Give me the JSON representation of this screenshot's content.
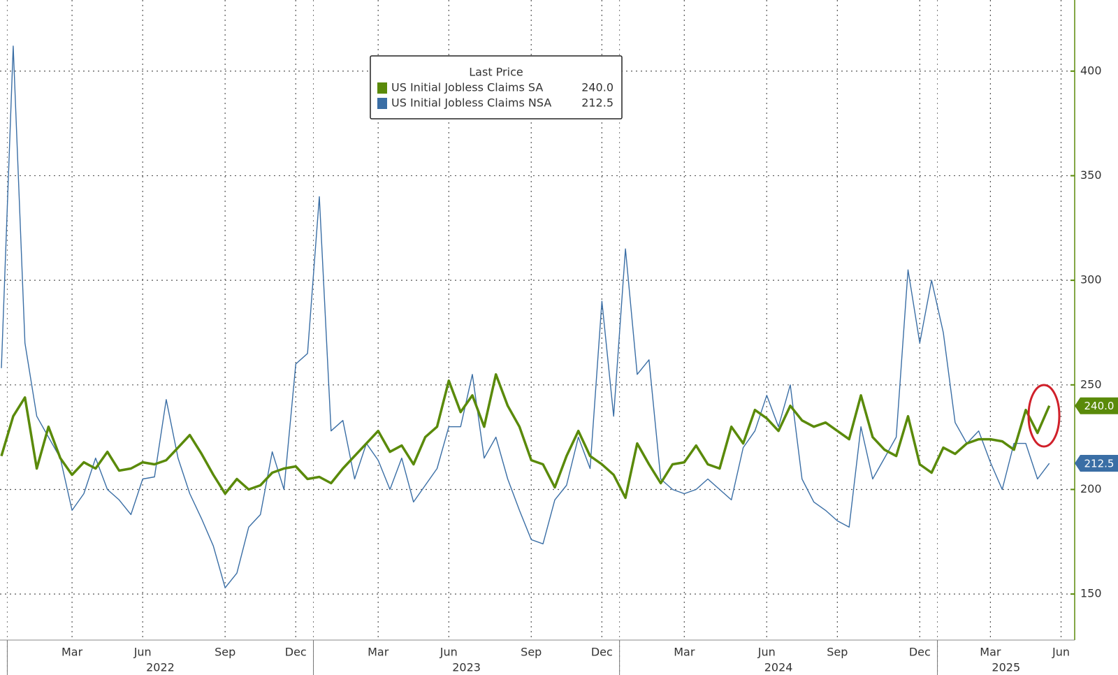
{
  "chart_data": {
    "type": "line",
    "legend_title": "Last Price",
    "categories": [
      null,
      null,
      null,
      null,
      null,
      null,
      "Mar",
      null,
      null,
      null,
      null,
      null,
      "Jun",
      null,
      null,
      null,
      null,
      null,
      null,
      "Sep",
      null,
      null,
      null,
      null,
      null,
      "Dec",
      null,
      null,
      null,
      null,
      null,
      null,
      "Mar",
      null,
      null,
      null,
      null,
      null,
      "Jun",
      null,
      null,
      null,
      null,
      null,
      null,
      "Sep",
      null,
      null,
      null,
      null,
      null,
      "Dec",
      null,
      null,
      null,
      null,
      null,
      null,
      "Mar",
      null,
      null,
      null,
      null,
      null,
      null,
      "Jun",
      null,
      null,
      null,
      null,
      null,
      "Sep",
      null,
      null,
      null,
      null,
      null,
      null,
      "Dec",
      null,
      null,
      null,
      null,
      null,
      "Mar",
      null,
      null,
      null,
      null,
      null,
      "Jun"
    ],
    "x_years": [
      null,
      "2022",
      "2022",
      "2022",
      "2022",
      "2022",
      "2022",
      "2022",
      "2022",
      "2022",
      "2022",
      "2022",
      "2022",
      "2022",
      "2022",
      "2022",
      "2022",
      "2022",
      "2022",
      "2022",
      "2022",
      "2022",
      "2022",
      "2022",
      "2022",
      "2022",
      "2022",
      "2023",
      "2023",
      "2023",
      "2023",
      "2023",
      "2023",
      "2023",
      "2023",
      "2023",
      "2023",
      "2023",
      "2023",
      "2023",
      "2023",
      "2023",
      "2023",
      "2023",
      "2023",
      "2023",
      "2023",
      "2023",
      "2023",
      "2023",
      "2023",
      "2023",
      "2023",
      "2024",
      "2024",
      "2024",
      "2024",
      "2024",
      "2024",
      "2024",
      "2024",
      "2024",
      "2024",
      "2024",
      "2024",
      "2024",
      "2024",
      "2024",
      "2024",
      "2024",
      "2024",
      "2024",
      "2024",
      "2024",
      "2024",
      "2024",
      "2024",
      "2024",
      "2024",
      "2024",
      "2025",
      "2025",
      "2025",
      "2025",
      "2025",
      "2025",
      "2025",
      "2025",
      "2025",
      "2025",
      "2025",
      "2025",
      "2025"
    ],
    "series": [
      {
        "name": "US Initial Jobless Claims SA",
        "color": "#5a8a0a",
        "last_value_label": "240.0",
        "values": [
          216,
          235,
          244,
          210,
          230,
          215,
          207,
          213,
          210,
          218,
          209,
          210,
          213,
          212,
          214,
          220,
          226,
          217,
          207,
          198,
          205,
          200,
          202,
          208,
          210,
          211,
          205,
          206,
          203,
          210,
          216,
          222,
          228,
          218,
          221,
          212,
          225,
          230,
          252,
          237,
          245,
          230,
          255,
          240,
          230,
          214,
          212,
          201,
          216,
          228,
          216,
          212,
          207,
          196,
          222,
          212,
          203,
          212,
          213,
          221,
          212,
          210,
          230,
          222,
          238,
          234,
          228,
          240,
          233,
          230,
          232,
          228,
          224,
          245,
          225,
          219,
          216,
          235,
          212,
          208,
          220,
          217,
          222,
          224,
          224,
          223,
          219,
          238,
          227,
          240,
          null
        ]
      },
      {
        "name": "US Initial Jobless Claims NSA",
        "color": "#3a6ea5",
        "last_value_label": "212.5",
        "values": [
          258,
          412,
          270,
          235,
          225,
          215,
          190,
          198,
          215,
          200,
          195,
          188,
          205,
          206,
          243,
          215,
          198,
          186,
          173,
          153,
          160,
          182,
          188,
          218,
          200,
          260,
          265,
          340,
          228,
          233,
          205,
          222,
          214,
          200,
          215,
          194,
          202,
          210,
          230,
          230,
          255,
          215,
          225,
          205,
          190,
          176,
          174,
          195,
          202,
          225,
          210,
          290,
          235,
          315,
          255,
          262,
          205,
          200,
          198,
          200,
          205,
          200,
          195,
          220,
          228,
          245,
          230,
          250,
          205,
          194,
          190,
          185,
          182,
          230,
          205,
          215,
          225,
          305,
          270,
          300,
          275,
          232,
          222,
          228,
          213,
          200,
          222,
          222,
          205,
          212.5,
          null
        ]
      }
    ],
    "ylim": [
      128,
      434
    ],
    "yticks": [
      150,
      200,
      250,
      300,
      350,
      400
    ],
    "grid": true
  }
}
